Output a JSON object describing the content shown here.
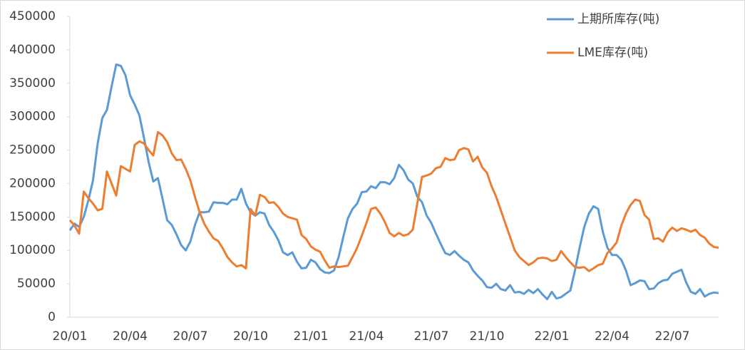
{
  "chart_data": {
    "type": "line",
    "categories": [
      "20/01",
      null,
      null,
      null,
      null,
      null,
      null,
      null,
      null,
      null,
      null,
      null,
      null,
      "20/04",
      null,
      null,
      null,
      null,
      null,
      null,
      null,
      null,
      null,
      null,
      null,
      null,
      "20/07",
      null,
      null,
      null,
      null,
      null,
      null,
      null,
      null,
      null,
      null,
      null,
      null,
      "20/10",
      null,
      null,
      null,
      null,
      null,
      null,
      null,
      null,
      null,
      null,
      null,
      null,
      "21/01",
      null,
      null,
      null,
      null,
      null,
      null,
      null,
      null,
      null,
      null,
      null,
      "21/04",
      null,
      null,
      null,
      null,
      null,
      null,
      null,
      null,
      null,
      null,
      null,
      null,
      null,
      "21/07",
      null,
      null,
      null,
      null,
      null,
      null,
      null,
      null,
      null,
      null,
      null,
      "21/10",
      null,
      null,
      null,
      null,
      null,
      null,
      null,
      null,
      null,
      null,
      null,
      null,
      null,
      "22/01",
      null,
      null,
      null,
      null,
      null,
      null,
      null,
      null,
      null,
      null,
      null,
      null,
      "22/04",
      null,
      null,
      null,
      null,
      null,
      null,
      null,
      null,
      null,
      null,
      null,
      null,
      "22/07",
      null,
      null,
      null,
      null,
      null,
      null,
      null,
      null,
      null,
      null
    ],
    "series": [
      {
        "name": "上期所库存(吨)",
        "color": "#5b9bd5",
        "values": [
          130000,
          140000,
          135000,
          150000,
          175000,
          205000,
          260000,
          298000,
          310000,
          345000,
          378000,
          376000,
          362000,
          332000,
          318000,
          302000,
          268000,
          232000,
          203000,
          208000,
          177000,
          145000,
          138000,
          124000,
          108000,
          100000,
          113000,
          138000,
          157000,
          157000,
          158000,
          172000,
          171000,
          171000,
          169000,
          176000,
          176000,
          192000,
          170000,
          157000,
          152000,
          157000,
          155000,
          138000,
          128000,
          115000,
          97000,
          93000,
          97000,
          83000,
          73000,
          74000,
          86000,
          82000,
          72000,
          67000,
          66000,
          70000,
          90000,
          120000,
          148000,
          162000,
          170000,
          187000,
          188000,
          196000,
          193000,
          202000,
          202000,
          199000,
          208000,
          228000,
          220000,
          206000,
          200000,
          180000,
          172000,
          152000,
          141000,
          125000,
          110000,
          96000,
          93000,
          99000,
          92000,
          86000,
          82000,
          70000,
          62000,
          55000,
          45000,
          44000,
          50000,
          42000,
          40000,
          48000,
          37000,
          38000,
          35000,
          41000,
          36000,
          42000,
          34000,
          27000,
          38000,
          28000,
          30000,
          35000,
          40000,
          70000,
          104000,
          135000,
          155000,
          166000,
          162000,
          128000,
          104000,
          93000,
          93000,
          86000,
          70000,
          48000,
          51000,
          55000,
          54000,
          42000,
          43000,
          51000,
          55000,
          56000,
          65000,
          68000,
          71000,
          52000,
          38000,
          35000,
          42000,
          31000,
          35000,
          37000,
          36000
        ]
      },
      {
        "name": "LME库存(吨)",
        "color": "#ed7d31",
        "values": [
          145000,
          137000,
          125000,
          188000,
          178000,
          170000,
          160000,
          162000,
          218000,
          200000,
          182000,
          226000,
          222000,
          218000,
          258000,
          263000,
          260000,
          250000,
          242000,
          277000,
          272000,
          262000,
          245000,
          235000,
          236000,
          222000,
          205000,
          180000,
          157000,
          140000,
          128000,
          118000,
          114000,
          103000,
          90000,
          82000,
          76000,
          78000,
          73000,
          162000,
          152000,
          183000,
          180000,
          171000,
          172000,
          165000,
          155000,
          150000,
          148000,
          146000,
          123000,
          117000,
          106000,
          101000,
          98000,
          85000,
          74000,
          76000,
          75000,
          76000,
          77000,
          90000,
          104000,
          122000,
          141000,
          162000,
          164000,
          155000,
          142000,
          126000,
          121000,
          126000,
          122000,
          124000,
          131000,
          171000,
          210000,
          212000,
          215000,
          223000,
          225000,
          238000,
          235000,
          236000,
          250000,
          253000,
          251000,
          233000,
          240000,
          224000,
          216000,
          196000,
          180000,
          160000,
          140000,
          120000,
          100000,
          90000,
          84000,
          78000,
          82000,
          88000,
          89000,
          88000,
          84000,
          86000,
          99000,
          90000,
          82000,
          75000,
          74000,
          75000,
          69000,
          73000,
          78000,
          80000,
          96000,
          103000,
          112000,
          137000,
          155000,
          168000,
          176000,
          174000,
          153000,
          146000,
          117000,
          118000,
          113000,
          127000,
          134000,
          129000,
          133000,
          131000,
          128000,
          131000,
          123000,
          119000,
          110000,
          105000,
          104000
        ]
      }
    ],
    "ylim": [
      0,
      450000
    ],
    "yticks": [
      0,
      50000,
      100000,
      150000,
      200000,
      250000,
      300000,
      350000,
      400000,
      450000
    ]
  }
}
